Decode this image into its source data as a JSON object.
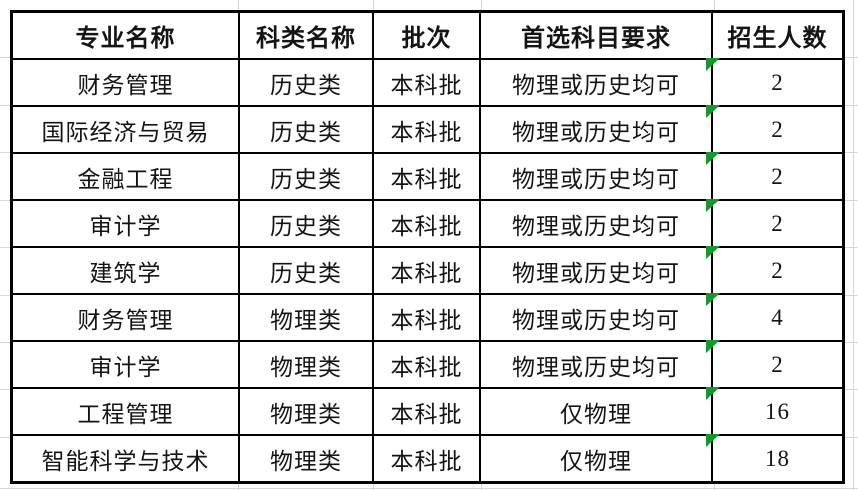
{
  "table": {
    "columns": [
      "专业名称",
      "科类名称",
      "批次",
      "首选科目要求",
      "招生人数"
    ],
    "rows": [
      {
        "major": "财务管理",
        "category": "历史类",
        "batch": "本科批",
        "subject_requirement": "物理或历史均可",
        "enrollment": "2",
        "has_marker": true
      },
      {
        "major": "国际经济与贸易",
        "category": "历史类",
        "batch": "本科批",
        "subject_requirement": "物理或历史均可",
        "enrollment": "2",
        "has_marker": true
      },
      {
        "major": "金融工程",
        "category": "历史类",
        "batch": "本科批",
        "subject_requirement": "物理或历史均可",
        "enrollment": "2",
        "has_marker": true
      },
      {
        "major": "审计学",
        "category": "历史类",
        "batch": "本科批",
        "subject_requirement": "物理或历史均可",
        "enrollment": "2",
        "has_marker": true
      },
      {
        "major": "建筑学",
        "category": "历史类",
        "batch": "本科批",
        "subject_requirement": "物理或历史均可",
        "enrollment": "2",
        "has_marker": true
      },
      {
        "major": "财务管理",
        "category": "物理类",
        "batch": "本科批",
        "subject_requirement": "物理或历史均可",
        "enrollment": "4",
        "has_marker": true
      },
      {
        "major": "审计学",
        "category": "物理类",
        "batch": "本科批",
        "subject_requirement": "物理或历史均可",
        "enrollment": "2",
        "has_marker": true
      },
      {
        "major": "工程管理",
        "category": "物理类",
        "batch": "本科批",
        "subject_requirement": "仅物理",
        "enrollment": "16",
        "has_marker": true
      },
      {
        "major": "智能科学与技术",
        "category": "物理类",
        "batch": "本科批",
        "subject_requirement": "仅物理",
        "enrollment": "18",
        "has_marker": true
      }
    ]
  },
  "colors": {
    "border": "#000000",
    "text": "#141414",
    "comment_marker": "#129b2c",
    "gridline": "#d6d6d6",
    "background": "#ffffff"
  }
}
